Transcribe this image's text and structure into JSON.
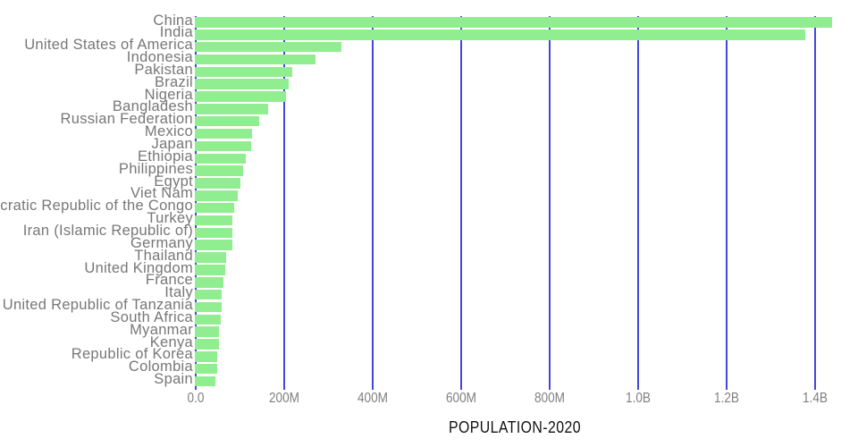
{
  "chart_data": {
    "type": "bar",
    "orientation": "horizontal",
    "title": "POPULATION-2020",
    "categories": [
      "China",
      "India",
      "United States of America",
      "Indonesia",
      "Pakistan",
      "Brazil",
      "Nigeria",
      "Bangladesh",
      "Russian Federation",
      "Mexico",
      "Japan",
      "Ethiopia",
      "Philippines",
      "Egypt",
      "Viet Nam",
      "Democratic Republic of the Congo",
      "Turkey",
      "Iran (Islamic Republic of)",
      "Germany",
      "Thailand",
      "United Kingdom",
      "France",
      "Italy",
      "United Republic of Tanzania",
      "South Africa",
      "Myanmar",
      "Kenya",
      "Republic of Korea",
      "Colombia",
      "Spain"
    ],
    "values_millions": [
      1439.3,
      1380.0,
      331.0,
      273.5,
      220.9,
      212.6,
      206.1,
      164.7,
      145.9,
      128.9,
      126.5,
      115.0,
      109.6,
      102.3,
      97.3,
      89.6,
      84.3,
      84.0,
      83.8,
      69.8,
      67.9,
      65.3,
      60.5,
      59.7,
      59.3,
      54.4,
      53.8,
      51.3,
      50.9,
      46.8
    ],
    "x_axis": {
      "label": "POPULATION-2020",
      "tick_labels": [
        "0.0",
        "200M",
        "400M",
        "600M",
        "800M",
        "1.0B",
        "1.2B",
        "1.4B"
      ],
      "tick_values_millions": [
        0,
        200,
        400,
        600,
        800,
        1000,
        1200,
        1400
      ],
      "range_millions": [
        0,
        1450
      ]
    },
    "grid": true,
    "legend": false,
    "colors": {
      "bar": "#90EE90",
      "gridline": "#4545E0",
      "category_label": "#777777",
      "tick_label": "#808080",
      "title": "#111111",
      "background": "#FFFFFF"
    }
  }
}
